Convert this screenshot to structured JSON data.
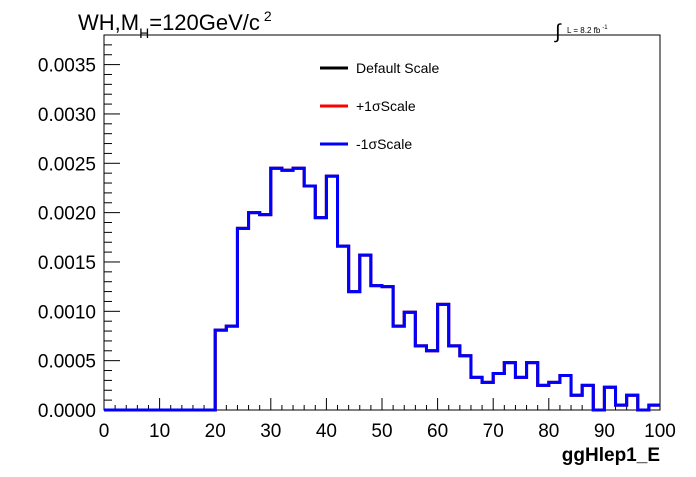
{
  "title": {
    "prefix": "WH,M",
    "subscript": "H",
    "suffix": "=120GeV/c",
    "superscript": "2"
  },
  "lumi": {
    "integral_symbol": "∫",
    "text": "L = 8.2 fb",
    "superscript": "-1"
  },
  "chart_data": {
    "type": "line",
    "style": "step-histogram",
    "xlabel": "ggHlep1_E",
    "ylabel": "",
    "xlim": [
      0,
      100
    ],
    "ylim": [
      0,
      0.0038
    ],
    "xticks": [
      0,
      10,
      20,
      30,
      40,
      50,
      60,
      70,
      80,
      90,
      100
    ],
    "xtick_labels": [
      "0",
      "10",
      "20",
      "30",
      "40",
      "50",
      "60",
      "70",
      "80",
      "90",
      "100"
    ],
    "yticks": [
      0,
      0.0005,
      0.001,
      0.0015,
      0.002,
      0.0025,
      0.003,
      0.0035
    ],
    "ytick_labels": [
      "0.0000",
      "0.0005",
      "0.0010",
      "0.0015",
      "0.0020",
      "0.0025",
      "0.0030",
      "0.0035"
    ],
    "legend_position": "top-center",
    "grid": false,
    "bin_edges": [
      0,
      2,
      4,
      6,
      8,
      10,
      12,
      14,
      16,
      18,
      20,
      22,
      24,
      26,
      28,
      30,
      32,
      34,
      36,
      38,
      40,
      42,
      44,
      46,
      48,
      50,
      52,
      54,
      56,
      58,
      60,
      62,
      64,
      66,
      68,
      70,
      72,
      74,
      76,
      78,
      80,
      82,
      84,
      86,
      88,
      90,
      92,
      94,
      96,
      98,
      100
    ],
    "series": [
      {
        "name": "Default Scale",
        "color": "#000000",
        "values": [
          0,
          0,
          0,
          0,
          0,
          0,
          0,
          0,
          0,
          0,
          0.00081,
          0.00085,
          0.00184,
          0.002,
          0.00198,
          0.00245,
          0.00243,
          0.00245,
          0.00227,
          0.00195,
          0.00237,
          0.00166,
          0.0012,
          0.00157,
          0.00126,
          0.00125,
          0.00085,
          0.00099,
          0.00065,
          0.0006,
          0.00107,
          0.00065,
          0.00055,
          0.00033,
          0.00028,
          0.00037,
          0.00048,
          0.00033,
          0.00048,
          0.00025,
          0.00028,
          0.00035,
          0.00015,
          0.00025,
          0.0,
          0.00023,
          5e-05,
          0.00015,
          0.0,
          5e-05
        ]
      },
      {
        "name": "+1σScale",
        "color": "#ff0000",
        "values": [
          0,
          0,
          0,
          0,
          0,
          0,
          0,
          0,
          0,
          0,
          0.00081,
          0.00085,
          0.00184,
          0.002,
          0.00198,
          0.00245,
          0.00243,
          0.00245,
          0.00227,
          0.00195,
          0.00237,
          0.00166,
          0.0012,
          0.00157,
          0.00126,
          0.00125,
          0.00085,
          0.00099,
          0.00065,
          0.0006,
          0.00107,
          0.00065,
          0.00055,
          0.00033,
          0.00028,
          0.00037,
          0.00048,
          0.00033,
          0.00048,
          0.00025,
          0.00028,
          0.00035,
          0.00015,
          0.00025,
          0.0,
          0.00023,
          5e-05,
          0.00015,
          0.0,
          5e-05
        ]
      },
      {
        "name": "-1σScale",
        "color": "#0000ff",
        "values": [
          0,
          0,
          0,
          0,
          0,
          0,
          0,
          0,
          0,
          0,
          0.00081,
          0.00085,
          0.00184,
          0.002,
          0.00198,
          0.00245,
          0.00243,
          0.00245,
          0.00227,
          0.00195,
          0.00237,
          0.00166,
          0.0012,
          0.00157,
          0.00126,
          0.00125,
          0.00085,
          0.00099,
          0.00065,
          0.0006,
          0.00107,
          0.00065,
          0.00055,
          0.00033,
          0.00028,
          0.00037,
          0.00048,
          0.00033,
          0.00048,
          0.00025,
          0.00028,
          0.00035,
          0.00015,
          0.00025,
          0.0,
          0.00023,
          5e-05,
          0.00015,
          0.0,
          5e-05
        ]
      }
    ]
  }
}
